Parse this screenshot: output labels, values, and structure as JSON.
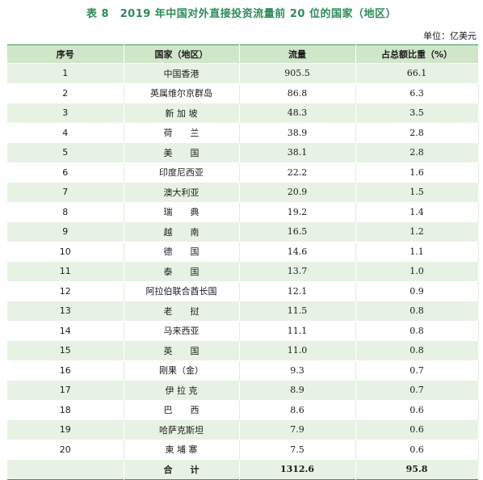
{
  "title": "表 8　2019 年中国对外直接投资流量前 20 位的国家（地区）",
  "unit": "单位：亿美元",
  "table": {
    "headers": [
      "序号",
      "国家（地区）",
      "流量",
      "占总额比重（%）"
    ],
    "rows": [
      {
        "no": "1",
        "country": "中国香港",
        "flow": "905.5",
        "share": "66.1"
      },
      {
        "no": "2",
        "country": "英属维尔京群岛",
        "flow": "86.8",
        "share": "6.3"
      },
      {
        "no": "3",
        "country": "新 加 坡",
        "flow": "48.3",
        "share": "3.5"
      },
      {
        "no": "4",
        "country": "荷　　兰",
        "flow": "38.9",
        "share": "2.8"
      },
      {
        "no": "5",
        "country": "美　　国",
        "flow": "38.1",
        "share": "2.8"
      },
      {
        "no": "6",
        "country": "印度尼西亚",
        "flow": "22.2",
        "share": "1.6"
      },
      {
        "no": "7",
        "country": "澳大利亚",
        "flow": "20.9",
        "share": "1.5"
      },
      {
        "no": "8",
        "country": "瑞　　典",
        "flow": "19.2",
        "share": "1.4"
      },
      {
        "no": "9",
        "country": "越　　南",
        "flow": "16.5",
        "share": "1.2"
      },
      {
        "no": "10",
        "country": "德　　国",
        "flow": "14.6",
        "share": "1.1"
      },
      {
        "no": "11",
        "country": "泰　　国",
        "flow": "13.7",
        "share": "1.0"
      },
      {
        "no": "12",
        "country": "阿拉伯联合酋长国",
        "flow": "12.1",
        "share": "0.9"
      },
      {
        "no": "13",
        "country": "老　　挝",
        "flow": "11.5",
        "share": "0.8"
      },
      {
        "no": "14",
        "country": "马来西亚",
        "flow": "11.1",
        "share": "0.8"
      },
      {
        "no": "15",
        "country": "英　　国",
        "flow": "11.0",
        "share": "0.8"
      },
      {
        "no": "16",
        "country": "刚果（金）",
        "flow": "9.3",
        "share": "0.7"
      },
      {
        "no": "17",
        "country": "伊 拉 克",
        "flow": "8.9",
        "share": "0.7"
      },
      {
        "no": "18",
        "country": "巴　　西",
        "flow": "8.6",
        "share": "0.6"
      },
      {
        "no": "19",
        "country": "哈萨克斯坦",
        "flow": "7.9",
        "share": "0.6"
      },
      {
        "no": "20",
        "country": "柬 埔 寨",
        "flow": "7.5",
        "share": "0.6"
      }
    ],
    "total": {
      "label": "合　　计",
      "flow": "1312.6",
      "share": "95.8"
    }
  },
  "colors": {
    "title_green": "#2e8b57",
    "header_bg": "#cfe6c8",
    "stripe_bg": "#e8f2e4",
    "rule": "#3a9a5a"
  }
}
